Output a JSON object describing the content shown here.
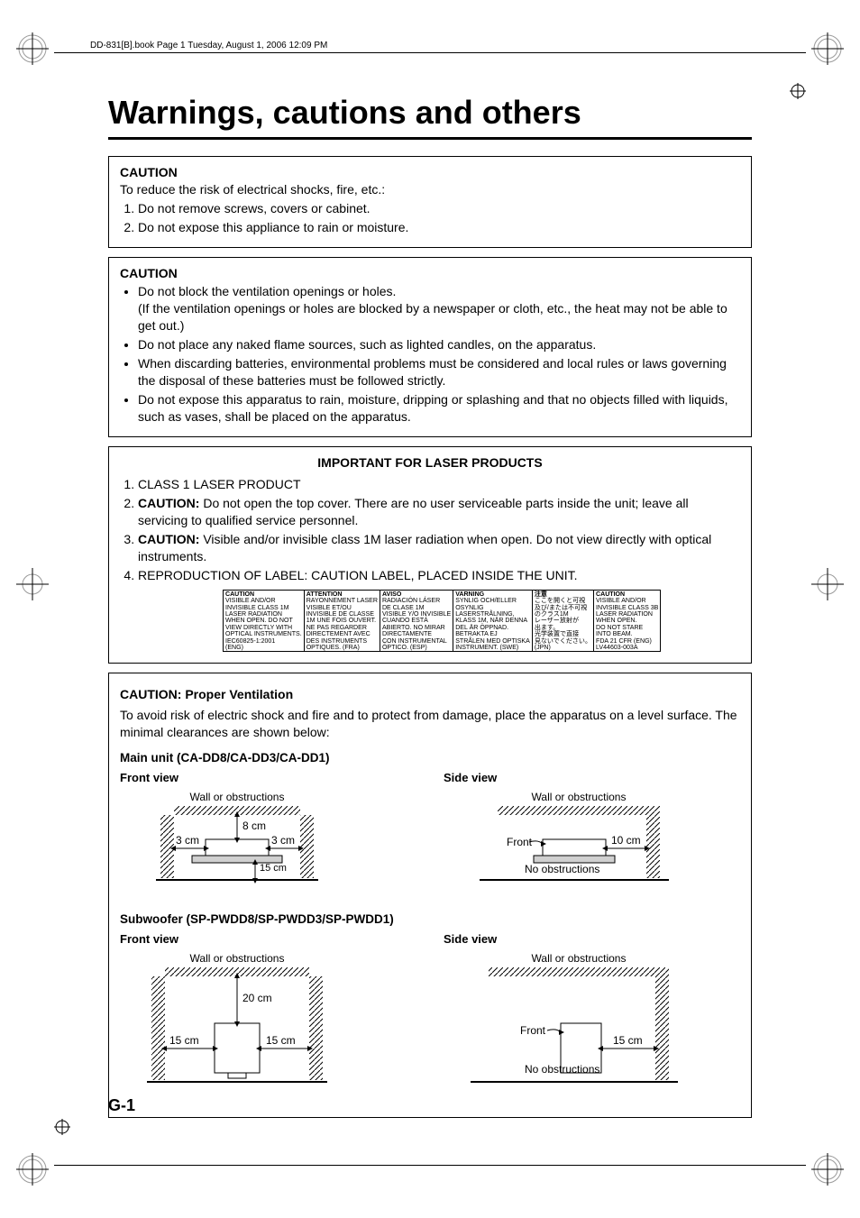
{
  "bookinfo": "DD-831[B].book  Page 1  Tuesday, August 1, 2006  12:09 PM",
  "title": "Warnings, cautions and others",
  "box1": {
    "heading": "CAUTION",
    "lead": "To reduce the risk of electrical shocks, fire, etc.:",
    "items": [
      "Do not remove screws, covers or cabinet.",
      "Do not expose this appliance to rain or moisture."
    ]
  },
  "box2": {
    "heading": "CAUTION",
    "bullets": [
      "Do not block the ventilation openings or holes.\n(If the ventilation openings or holes are blocked by a newspaper or cloth, etc., the heat may not be able to get out.)",
      "Do not place any naked flame sources, such as lighted candles, on the apparatus.",
      "When discarding batteries, environmental problems must be considered and local rules or laws governing the disposal of these batteries must be followed strictly.",
      "Do not expose this apparatus to rain, moisture, dripping or splashing and that no objects filled with liquids, such as vases, shall be placed on the apparatus."
    ]
  },
  "box3": {
    "heading": "IMPORTANT FOR LASER PRODUCTS",
    "items": [
      {
        "pre": "",
        "bold": "",
        "post": "CLASS 1 LASER PRODUCT"
      },
      {
        "pre": "",
        "bold": "CAUTION:",
        "post": " Do not open the top cover. There are no user serviceable parts inside the unit; leave all servicing to qualified service personnel."
      },
      {
        "pre": "",
        "bold": "CAUTION:",
        "post": " Visible and/or invisible class 1M laser radiation when open. Do not view directly with optical instruments."
      },
      {
        "pre": "",
        "bold": "",
        "post": "REPRODUCTION OF LABEL: CAUTION LABEL, PLACED INSIDE THE UNIT."
      }
    ],
    "label": {
      "columns": [
        "CAUTION",
        "ATTENTION",
        "AVISO",
        "VARNING",
        "注意",
        "CAUTION"
      ],
      "rows": [
        [
          "VISIBLE AND/OR",
          "RAYONNEMENT LASER",
          "RADIACIÓN LÁSER",
          "SYNLIG OCH/ELLER",
          "ここを開くと可視",
          "VISIBLE AND/OR"
        ],
        [
          "INVISIBLE CLASS 1M",
          "VISIBLE ET/OU",
          "DE CLASE 1M",
          "OSYNLIG",
          "及び/または不可視",
          "INVISIBLE CLASS 3B"
        ],
        [
          "LASER RADIATION",
          "INVISIBLE DE CLASSE",
          "VISIBLE Y/O INVISIBLE",
          "LASERSTRÅLNING,",
          "のクラス1M",
          "LASER RADIATION"
        ],
        [
          "WHEN OPEN. DO NOT",
          "1M UNE FOIS OUVERT.",
          "CUANDO ESTÁ",
          "KLASS 1M, NÄR DENNA",
          "レーザー放射が",
          "WHEN OPEN."
        ],
        [
          "VIEW DIRECTLY WITH",
          "NE PAS REGARDER",
          "ABIERTO. NO MIRAR",
          "DEL ÄR ÖPPNAD.",
          "出ます。",
          "DO NOT STARE"
        ],
        [
          "OPTICAL INSTRUMENTS.",
          "DIRECTEMENT AVEC",
          "DIRECTAMENTE",
          "BETRAKTA EJ",
          "光学装置で直接",
          "INTO BEAM."
        ],
        [
          "IEC60825-1:2001",
          "DES INSTRUMENTS",
          "CON INSTRUMENTAL",
          "STRÅLEN MED OPTISKA",
          "見ないでください。",
          "FDA 21 CFR   (ENG)"
        ],
        [
          "(ENG)",
          "OPTIQUES.      (FRA)",
          "ÓPTICO.        (ESP)",
          "INSTRUMENT.   (SWE)",
          "(JPN)",
          "LV44603-003A"
        ]
      ],
      "border_color": "#000000",
      "bg": "#ffffff",
      "header_weight": "bold",
      "fontsize": 5.3
    }
  },
  "box4": {
    "heading": "CAUTION: Proper Ventilation",
    "lead": "To avoid risk of electric shock and fire and to protect from damage, place the apparatus on a level surface. The minimal clearances are shown below:",
    "main_unit_heading": "Main unit (CA-DD8/CA-DD3/CA-DD1)",
    "subwoofer_heading": "Subwoofer (SP-PWDD8/SP-PWDD3/SP-PWDD1)",
    "front_view": "Front view",
    "side_view": "Side view",
    "wall_label": "Wall or obstructions",
    "no_obstructions": "No obstructions",
    "front_label": "Front",
    "main_front": {
      "top": "8 cm",
      "left": "3 cm",
      "right": "3 cm",
      "bottom": "15 cm"
    },
    "main_side": {
      "back": "10 cm"
    },
    "sub_front": {
      "top": "20 cm",
      "left": "15 cm",
      "right": "15 cm"
    },
    "sub_side": {
      "back": "15 cm"
    }
  },
  "pagenum": "G-1",
  "colors": {
    "text": "#000000",
    "hatch": "#000000",
    "bg": "#ffffff"
  }
}
